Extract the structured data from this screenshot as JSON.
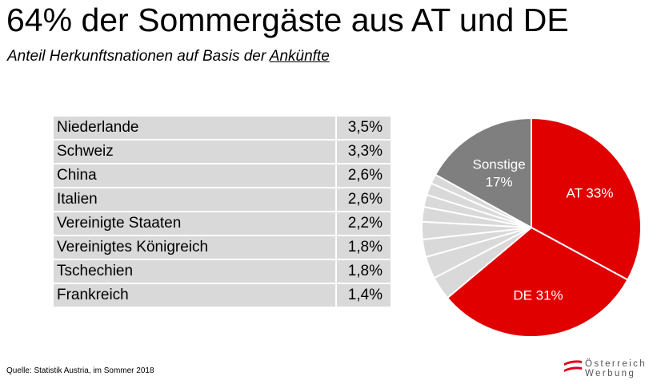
{
  "header": {
    "title": "64% der Sommergäste aus AT und DE",
    "subtitle_prefix": "Anteil Herkunftsnationen auf Basis der ",
    "subtitle_emphasis": "Ankünfte"
  },
  "table": {
    "rows": [
      {
        "country": "Niederlande",
        "share": "3,5%"
      },
      {
        "country": "Schweiz",
        "share": "3,3%"
      },
      {
        "country": "China",
        "share": "2,6%"
      },
      {
        "country": "Italien",
        "share": "2,6%"
      },
      {
        "country": "Vereinigte Staaten",
        "share": "2,2%"
      },
      {
        "country": "Vereinigtes Königreich",
        "share": "1,8%"
      },
      {
        "country": "Tschechien",
        "share": "1,8%"
      },
      {
        "country": "Frankreich",
        "share": "1,4%"
      }
    ]
  },
  "chart_data": {
    "type": "pie",
    "start_angle_deg": 0,
    "direction": "clockwise",
    "slices": [
      {
        "name": "AT",
        "label": "AT 33%",
        "value": 33,
        "color": "#e00000"
      },
      {
        "name": "DE",
        "label": "DE 31%",
        "value": 31,
        "color": "#e00000"
      },
      {
        "name": "Niederlande",
        "value": 3.5,
        "color": "#d9d9d9"
      },
      {
        "name": "Schweiz",
        "value": 3.3,
        "color": "#d9d9d9"
      },
      {
        "name": "China",
        "value": 2.6,
        "color": "#d9d9d9"
      },
      {
        "name": "Italien",
        "value": 2.6,
        "color": "#d9d9d9"
      },
      {
        "name": "Vereinigte Staaten",
        "value": 2.2,
        "color": "#d9d9d9"
      },
      {
        "name": "Vereinigtes Königreich",
        "value": 1.8,
        "color": "#d9d9d9"
      },
      {
        "name": "Tschechien",
        "value": 1.8,
        "color": "#d9d9d9"
      },
      {
        "name": "Frankreich",
        "value": 1.4,
        "color": "#d9d9d9"
      },
      {
        "name": "Sonstige",
        "label_line1": "Sonstige",
        "label_line2": "17%",
        "value": 17,
        "color": "#7f7f7f"
      }
    ]
  },
  "footer": {
    "source": "Quelle:  Statistik Austria, im Sommer 2018",
    "logo_line1": "Österreich",
    "logo_line2": "Werbung",
    "logo_color": "#e2001a"
  }
}
